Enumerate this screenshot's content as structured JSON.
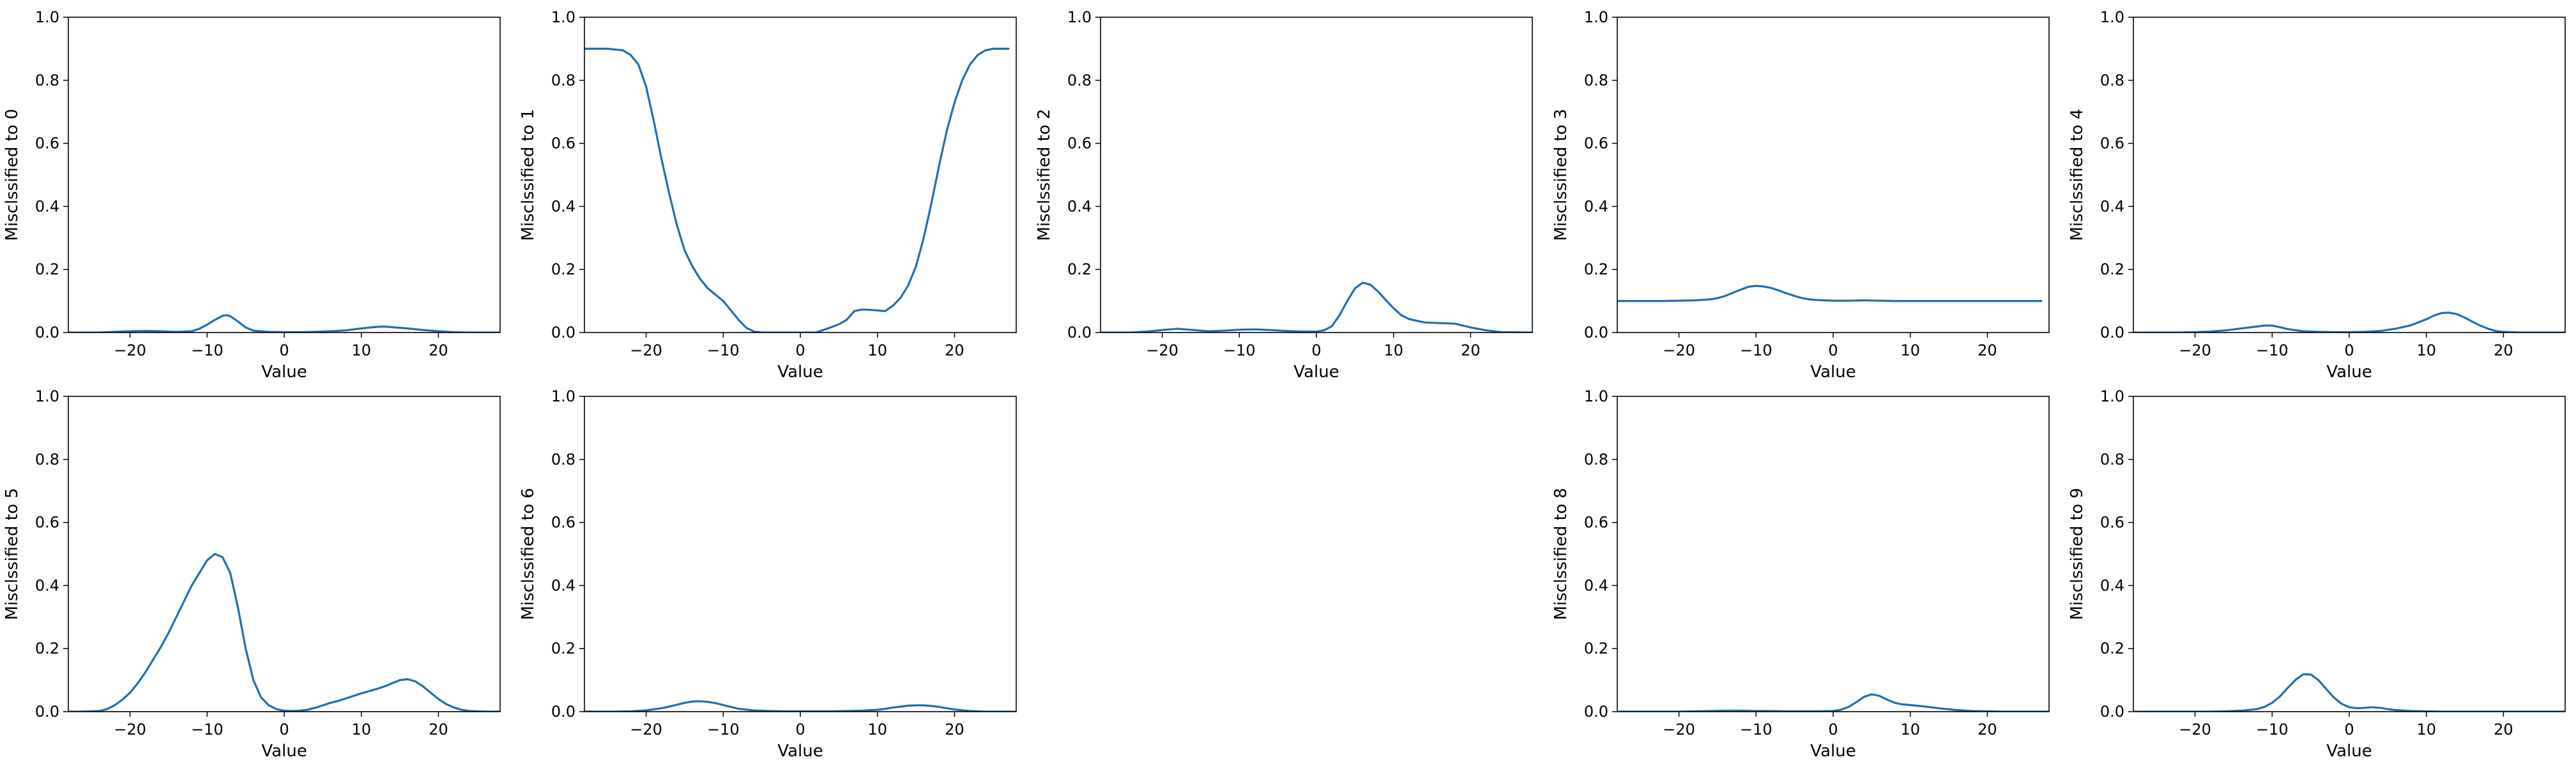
{
  "figure": {
    "background": "#ffffff",
    "line_color": "#1f6fb4"
  },
  "chart_data": [
    {
      "type": "line",
      "xlabel": "Value",
      "ylabel": "Misclssified to 0",
      "xlim": [
        -28,
        28
      ],
      "ylim": [
        0,
        1
      ],
      "xticks": [
        -20,
        -10,
        0,
        10,
        20
      ],
      "yticks": [
        0,
        0.2,
        0.4,
        0.6,
        0.8,
        1.0
      ],
      "xtick_labels": [
        "−20",
        "−10",
        "0",
        "10",
        "20"
      ],
      "ytick_labels": [
        "0.0",
        "0.2",
        "0.4",
        "0.6",
        "0.8",
        "1.0"
      ],
      "series": [
        {
          "color": "#1f6fb4",
          "x": [
            -28,
            -24,
            -22,
            -20,
            -18,
            -16,
            -14,
            -12,
            -11,
            -10,
            -9,
            -8,
            -7.5,
            -7,
            -6,
            -5,
            -4,
            -2,
            0,
            2,
            4,
            6,
            8,
            10,
            12,
            13,
            14,
            16,
            18,
            20,
            22,
            24,
            28
          ],
          "y": [
            0,
            0,
            0.002,
            0.004,
            0.005,
            0.004,
            0.002,
            0.004,
            0.012,
            0.025,
            0.04,
            0.053,
            0.055,
            0.052,
            0.035,
            0.016,
            0.006,
            0.002,
            0.001,
            0.001,
            0.002,
            0.004,
            0.007,
            0.013,
            0.018,
            0.019,
            0.017,
            0.013,
            0.008,
            0.004,
            0.001,
            0,
            0
          ]
        }
      ]
    },
    {
      "type": "line",
      "xlabel": "Value",
      "ylabel": "Misclssified to 1",
      "xlim": [
        -28,
        28
      ],
      "ylim": [
        0,
        1
      ],
      "xticks": [
        -20,
        -10,
        0,
        10,
        20
      ],
      "yticks": [
        0,
        0.2,
        0.4,
        0.6,
        0.8,
        1.0
      ],
      "xtick_labels": [
        "−20",
        "−10",
        "0",
        "10",
        "20"
      ],
      "ytick_labels": [
        "0.0",
        "0.2",
        "0.4",
        "0.6",
        "0.8",
        "1.0"
      ],
      "series": [
        {
          "color": "#1f6fb4",
          "x": [
            -28,
            -25,
            -23,
            -22,
            -21,
            -20,
            -19,
            -18,
            -17,
            -16,
            -15,
            -14,
            -13,
            -12,
            -11,
            -10,
            -9,
            -8,
            -7,
            -6,
            -5,
            -4,
            -2,
            0,
            2,
            3,
            4,
            5,
            6,
            7,
            8,
            9,
            10,
            11,
            12,
            13,
            14,
            15,
            16,
            17,
            18,
            19,
            20,
            21,
            22,
            23,
            24,
            25,
            26,
            27
          ],
          "y": [
            0.9,
            0.9,
            0.895,
            0.88,
            0.85,
            0.78,
            0.67,
            0.55,
            0.44,
            0.34,
            0.26,
            0.21,
            0.17,
            0.14,
            0.12,
            0.1,
            0.07,
            0.04,
            0.015,
            0.003,
            0,
            0,
            0,
            0,
            0,
            0.008,
            0.017,
            0.026,
            0.04,
            0.068,
            0.073,
            0.072,
            0.07,
            0.068,
            0.085,
            0.11,
            0.15,
            0.21,
            0.3,
            0.41,
            0.53,
            0.64,
            0.73,
            0.8,
            0.85,
            0.88,
            0.895,
            0.9,
            0.9,
            0.9
          ]
        }
      ]
    },
    {
      "type": "line",
      "xlabel": "Value",
      "ylabel": "Misclssified to 2",
      "xlim": [
        -28,
        28
      ],
      "ylim": [
        0,
        1
      ],
      "xticks": [
        -20,
        -10,
        0,
        10,
        20
      ],
      "yticks": [
        0,
        0.2,
        0.4,
        0.6,
        0.8,
        1.0
      ],
      "xtick_labels": [
        "−20",
        "−10",
        "0",
        "10",
        "20"
      ],
      "ytick_labels": [
        "0.0",
        "0.2",
        "0.4",
        "0.6",
        "0.8",
        "1.0"
      ],
      "series": [
        {
          "color": "#1f6fb4",
          "x": [
            -28,
            -24,
            -22,
            -20,
            -18,
            -16,
            -14,
            -12,
            -10,
            -8,
            -6,
            -4,
            -2,
            0,
            1,
            2,
            3,
            4,
            5,
            6,
            7,
            8,
            9,
            10,
            11,
            12,
            14,
            16,
            18,
            19,
            20,
            22,
            24,
            28
          ],
          "y": [
            0,
            0,
            0.003,
            0.008,
            0.012,
            0.008,
            0.004,
            0.006,
            0.009,
            0.01,
            0.008,
            0.005,
            0.003,
            0.003,
            0.007,
            0.02,
            0.055,
            0.1,
            0.14,
            0.158,
            0.152,
            0.13,
            0.103,
            0.077,
            0.055,
            0.043,
            0.032,
            0.03,
            0.028,
            0.022,
            0.016,
            0.007,
            0.001,
            0
          ]
        }
      ]
    },
    {
      "type": "line",
      "xlabel": "Value",
      "ylabel": "Misclssified to 3",
      "xlim": [
        -28,
        28
      ],
      "ylim": [
        0,
        1
      ],
      "xticks": [
        -20,
        -10,
        0,
        10,
        20
      ],
      "yticks": [
        0,
        0.2,
        0.4,
        0.6,
        0.8,
        1.0
      ],
      "xtick_labels": [
        "−20",
        "−10",
        "0",
        "10",
        "20"
      ],
      "ytick_labels": [
        "0.0",
        "0.2",
        "0.4",
        "0.6",
        "0.8",
        "1.0"
      ],
      "series": [
        {
          "color": "#1f6fb4",
          "x": [
            -28,
            -24,
            -22,
            -20,
            -18,
            -16,
            -15,
            -14,
            -13,
            -12,
            -11,
            -10,
            -9,
            -8,
            -7,
            -6,
            -5,
            -4,
            -3,
            -2,
            -1,
            0,
            2,
            4,
            6,
            8,
            10,
            14,
            18,
            22,
            27
          ],
          "y": [
            0.1,
            0.1,
            0.1,
            0.101,
            0.102,
            0.105,
            0.109,
            0.116,
            0.126,
            0.136,
            0.145,
            0.148,
            0.146,
            0.141,
            0.133,
            0.124,
            0.116,
            0.109,
            0.105,
            0.103,
            0.102,
            0.101,
            0.101,
            0.102,
            0.101,
            0.1,
            0.1,
            0.1,
            0.1,
            0.1,
            0.1
          ]
        }
      ]
    },
    {
      "type": "line",
      "xlabel": "Value",
      "ylabel": "Misclssified to 4",
      "xlim": [
        -28,
        28
      ],
      "ylim": [
        0,
        1
      ],
      "xticks": [
        -20,
        -10,
        0,
        10,
        20
      ],
      "yticks": [
        0,
        0.2,
        0.4,
        0.6,
        0.8,
        1.0
      ],
      "xtick_labels": [
        "−20",
        "−10",
        "0",
        "10",
        "20"
      ],
      "ytick_labels": [
        "0.0",
        "0.2",
        "0.4",
        "0.6",
        "0.8",
        "1.0"
      ],
      "series": [
        {
          "color": "#1f6fb4",
          "x": [
            -28,
            -22,
            -20,
            -18,
            -16,
            -14,
            -12,
            -11,
            -10,
            -9,
            -8,
            -6,
            -4,
            -2,
            0,
            2,
            4,
            6,
            8,
            10,
            11,
            12,
            13,
            14,
            15,
            16,
            17,
            18,
            19,
            20,
            22,
            28
          ],
          "y": [
            0,
            0,
            0.001,
            0.003,
            0.007,
            0.013,
            0.019,
            0.022,
            0.022,
            0.017,
            0.011,
            0.004,
            0.002,
            0.001,
            0.001,
            0.002,
            0.005,
            0.012,
            0.023,
            0.042,
            0.054,
            0.062,
            0.063,
            0.058,
            0.047,
            0.034,
            0.022,
            0.012,
            0.005,
            0.002,
            0,
            0
          ]
        }
      ]
    },
    {
      "type": "line",
      "xlabel": "Value",
      "ylabel": "Misclssified to 5",
      "xlim": [
        -28,
        28
      ],
      "ylim": [
        0,
        1
      ],
      "xticks": [
        -20,
        -10,
        0,
        10,
        20
      ],
      "yticks": [
        0,
        0.2,
        0.4,
        0.6,
        0.8,
        1.0
      ],
      "xtick_labels": [
        "−20",
        "−10",
        "0",
        "10",
        "20"
      ],
      "ytick_labels": [
        "0.0",
        "0.2",
        "0.4",
        "0.6",
        "0.8",
        "1.0"
      ],
      "series": [
        {
          "color": "#1f6fb4",
          "x": [
            -28,
            -26,
            -24,
            -23,
            -22,
            -21,
            -20,
            -19,
            -18,
            -17,
            -16,
            -15,
            -14,
            -13,
            -12,
            -11,
            -10,
            -9,
            -8,
            -7,
            -6,
            -5,
            -4,
            -3,
            -2,
            -1,
            0,
            1,
            2,
            3,
            4,
            5,
            6,
            7,
            8,
            9,
            10,
            11,
            12,
            13,
            14,
            15,
            16,
            17,
            18,
            19,
            20,
            21,
            22,
            23,
            24,
            26,
            28
          ],
          "y": [
            0,
            0,
            0.002,
            0.008,
            0.02,
            0.038,
            0.06,
            0.09,
            0.125,
            0.165,
            0.205,
            0.25,
            0.3,
            0.35,
            0.4,
            0.44,
            0.48,
            0.5,
            0.49,
            0.44,
            0.33,
            0.2,
            0.1,
            0.045,
            0.02,
            0.008,
            0.003,
            0.002,
            0.003,
            0.006,
            0.012,
            0.02,
            0.028,
            0.034,
            0.042,
            0.05,
            0.058,
            0.065,
            0.072,
            0.08,
            0.09,
            0.1,
            0.103,
            0.096,
            0.08,
            0.06,
            0.04,
            0.024,
            0.013,
            0.006,
            0.002,
            0,
            0
          ]
        }
      ]
    },
    {
      "type": "line",
      "xlabel": "Value",
      "ylabel": "Misclssified to 6",
      "xlim": [
        -28,
        28
      ],
      "ylim": [
        0,
        1
      ],
      "xticks": [
        -20,
        -10,
        0,
        10,
        20
      ],
      "yticks": [
        0,
        0.2,
        0.4,
        0.6,
        0.8,
        1.0
      ],
      "xtick_labels": [
        "−20",
        "−10",
        "0",
        "10",
        "20"
      ],
      "ytick_labels": [
        "0.0",
        "0.2",
        "0.4",
        "0.6",
        "0.8",
        "1.0"
      ],
      "series": [
        {
          "color": "#1f6fb4",
          "x": [
            -28,
            -24,
            -22,
            -20,
            -18,
            -17,
            -16,
            -15,
            -14,
            -13,
            -12,
            -11,
            -10,
            -9,
            -8,
            -6,
            -4,
            -2,
            0,
            2,
            4,
            6,
            8,
            10,
            11,
            12,
            13,
            14,
            15,
            16,
            17,
            18,
            19,
            20,
            22,
            24,
            28
          ],
          "y": [
            0,
            0,
            0.001,
            0.004,
            0.011,
            0.016,
            0.022,
            0.028,
            0.032,
            0.033,
            0.031,
            0.027,
            0.021,
            0.015,
            0.009,
            0.004,
            0.002,
            0.001,
            0.001,
            0.001,
            0.001,
            0.002,
            0.003,
            0.006,
            0.009,
            0.013,
            0.016,
            0.019,
            0.02,
            0.02,
            0.018,
            0.015,
            0.011,
            0.007,
            0.002,
            0,
            0
          ]
        }
      ]
    },
    {
      "type": "line",
      "xlabel": "Value",
      "ylabel": "Misclssified to 8",
      "xlim": [
        -28,
        28
      ],
      "ylim": [
        0,
        1
      ],
      "xticks": [
        -20,
        -10,
        0,
        10,
        20
      ],
      "yticks": [
        0,
        0.2,
        0.4,
        0.6,
        0.8,
        1.0
      ],
      "xtick_labels": [
        "−20",
        "−10",
        "0",
        "10",
        "20"
      ],
      "ytick_labels": [
        "0.0",
        "0.2",
        "0.4",
        "0.6",
        "0.8",
        "1.0"
      ],
      "series": [
        {
          "color": "#1f6fb4",
          "x": [
            -28,
            -22,
            -20,
            -18,
            -16,
            -14,
            -12,
            -10,
            -8,
            -6,
            -4,
            -2,
            0,
            1,
            2,
            3,
            4,
            5,
            6,
            7,
            8,
            9,
            10,
            12,
            14,
            16,
            18,
            20,
            22,
            28
          ],
          "y": [
            0,
            0,
            0,
            0.001,
            0.002,
            0.003,
            0.003,
            0.002,
            0.002,
            0.001,
            0.001,
            0.001,
            0.002,
            0.006,
            0.015,
            0.03,
            0.047,
            0.055,
            0.05,
            0.038,
            0.028,
            0.023,
            0.021,
            0.016,
            0.01,
            0.005,
            0.002,
            0.001,
            0,
            0
          ]
        }
      ]
    },
    {
      "type": "line",
      "xlabel": "Value",
      "ylabel": "Misclssified to 9",
      "xlim": [
        -28,
        28
      ],
      "ylim": [
        0,
        1
      ],
      "xticks": [
        -20,
        -10,
        0,
        10,
        20
      ],
      "yticks": [
        0,
        0.2,
        0.4,
        0.6,
        0.8,
        1.0
      ],
      "xtick_labels": [
        "−20",
        "−10",
        "0",
        "10",
        "20"
      ],
      "ytick_labels": [
        "0.0",
        "0.2",
        "0.4",
        "0.6",
        "0.8",
        "1.0"
      ],
      "series": [
        {
          "color": "#1f6fb4",
          "x": [
            -28,
            -18,
            -16,
            -14,
            -12,
            -11,
            -10,
            -9,
            -8,
            -7,
            -6,
            -5,
            -4,
            -3,
            -2,
            -1,
            0,
            1,
            2,
            3,
            4,
            5,
            6,
            8,
            10,
            12,
            14,
            28
          ],
          "y": [
            0,
            0,
            0.001,
            0.003,
            0.008,
            0.015,
            0.028,
            0.048,
            0.075,
            0.1,
            0.118,
            0.118,
            0.1,
            0.072,
            0.045,
            0.025,
            0.014,
            0.011,
            0.012,
            0.014,
            0.012,
            0.008,
            0.005,
            0.002,
            0.001,
            0,
            0,
            0
          ]
        }
      ]
    }
  ]
}
